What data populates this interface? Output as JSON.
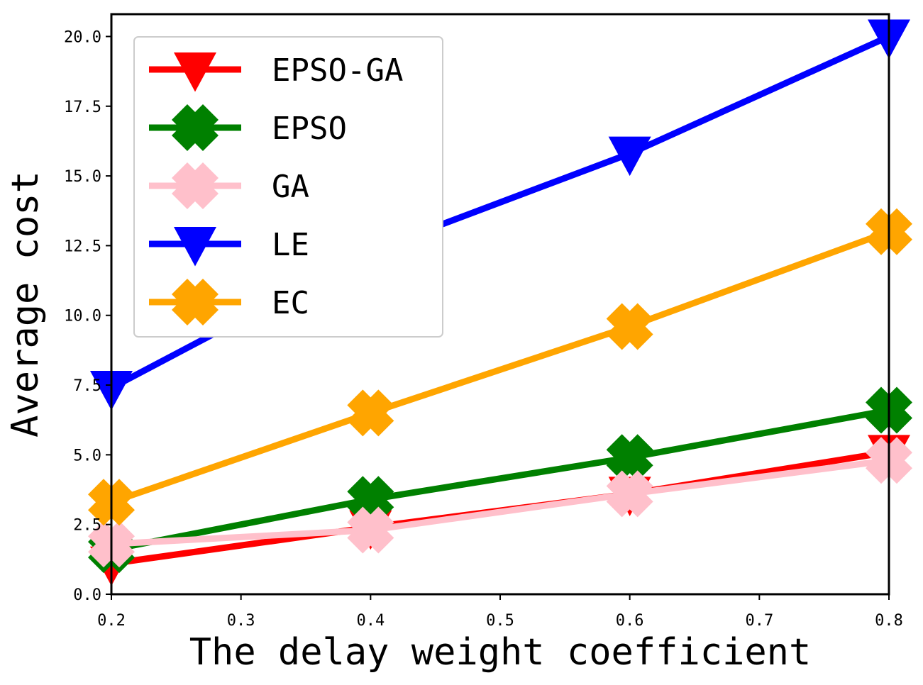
{
  "chart_data": {
    "type": "line",
    "xlabel": "The delay weight coefficient",
    "ylabel": "Average cost",
    "xlim": [
      0.2,
      0.8
    ],
    "ylim": [
      0.0,
      20.8
    ],
    "x_ticks": [
      "0.2",
      "0.3",
      "0.4",
      "0.5",
      "0.6",
      "0.7",
      "0.8"
    ],
    "y_ticks": [
      "0.0",
      "2.5",
      "5.0",
      "7.5",
      "10.0",
      "12.5",
      "15.0",
      "17.5",
      "20.0"
    ],
    "grid": false,
    "legend_position": "top-left",
    "x": [
      0.2,
      0.4,
      0.6,
      0.8
    ],
    "series": [
      {
        "name": "EPSO-GA",
        "values": [
          1.1,
          2.4,
          3.6,
          5.1
        ],
        "color": "#ff0000",
        "marker": "triangle-down"
      },
      {
        "name": "EPSO",
        "values": [
          1.6,
          3.4,
          4.9,
          6.6
        ],
        "color": "#008000",
        "marker": "x-cross"
      },
      {
        "name": "GA",
        "values": [
          1.8,
          2.3,
          3.6,
          4.8
        ],
        "color": "#ffc0cb",
        "marker": "x-cross"
      },
      {
        "name": "LE",
        "values": [
          7.4,
          12.3,
          15.8,
          20.0
        ],
        "color": "#0000ff",
        "marker": "triangle-down"
      },
      {
        "name": "EC",
        "values": [
          3.3,
          6.5,
          9.6,
          13.0
        ],
        "color": "#ffa500",
        "marker": "x-cross"
      }
    ]
  }
}
